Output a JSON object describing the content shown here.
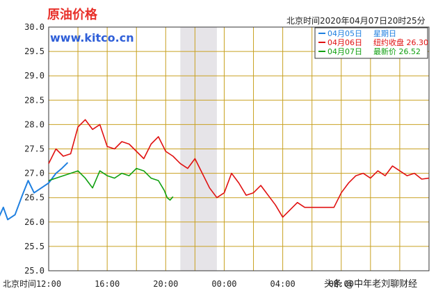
{
  "chart_data": {
    "type": "line",
    "title": "原油价格",
    "site": "www.kitco.cn",
    "timestamp": "北京时间2020年04月07日20时25分",
    "xlabel": "北京时间",
    "x_ticks": [
      "12:00",
      "16:00",
      "20:00",
      "00:00",
      "04:00",
      "08:00"
    ],
    "ylim": [
      25.0,
      30.0
    ],
    "y_ticks": [
      "30.0",
      "29.5",
      "29.0",
      "28.5",
      "28.0",
      "27.5",
      "27.0",
      "26.5",
      "26.0",
      "25.5",
      "25.0"
    ],
    "grid": true,
    "shaded_range_hours": [
      21,
      23.5
    ],
    "legend": {
      "position": "top-right",
      "rows": [
        {
          "date": "04月05日",
          "label": "星期日",
          "value": ""
        },
        {
          "date": "04月06日",
          "label": "纽约收盘",
          "value": "26.30"
        },
        {
          "date": "04月07日",
          "label": "最新价",
          "value": "26.52"
        }
      ]
    },
    "colors": {
      "series_0405": "#1e7fe0",
      "series_0406": "#e01010",
      "series_0407": "#10a010",
      "grid": "#c8a020",
      "shade": "#e6e4e8"
    },
    "series": [
      {
        "name": "04月05日",
        "color": "#1e7fe0",
        "x": [
          6.0,
          7.2,
          7.2,
          7.3,
          7.35,
          7.5,
          7.8,
          8.2,
          8.6,
          8.9,
          9.2,
          9.7,
          10.2,
          10.6,
          11.0,
          11.5,
          12.0,
          12.5,
          12.9,
          13.3
        ],
        "y": [
          29.02,
          29.02,
          28.5,
          26.8,
          25.85,
          26.05,
          26.3,
          26.25,
          26.1,
          26.3,
          26.05,
          26.15,
          26.55,
          26.85,
          26.6,
          26.7,
          26.8,
          27.0,
          27.1,
          27.22
        ]
      },
      {
        "name": "04月06日",
        "color": "#e01010",
        "x": [
          12.0,
          12.5,
          13.0,
          13.5,
          14.0,
          14.5,
          15.0,
          15.5,
          16.0,
          16.5,
          17.0,
          17.5,
          18.0,
          18.5,
          19.0,
          19.5,
          20.0,
          20.5,
          21.0,
          21.5,
          22.0,
          22.5,
          23.0,
          23.5,
          24.0,
          24.5,
          25.0,
          25.5,
          26.0,
          26.5,
          27.0,
          27.5,
          28.0,
          28.5,
          29.0,
          29.5,
          30.0,
          30.5,
          31.0,
          31.5,
          32.0,
          32.5,
          33.0,
          33.5,
          34.0,
          34.5,
          35.0,
          35.5,
          36.0,
          36.5,
          37.0,
          37.5,
          38.0
        ],
        "y": [
          27.2,
          27.5,
          27.35,
          27.4,
          27.95,
          28.1,
          27.9,
          28.0,
          27.55,
          27.5,
          27.65,
          27.6,
          27.45,
          27.3,
          27.6,
          27.75,
          27.45,
          27.35,
          27.2,
          27.1,
          27.3,
          27.0,
          26.7,
          26.5,
          26.6,
          27.0,
          26.8,
          26.55,
          26.6,
          26.75,
          26.55,
          26.35,
          26.1,
          26.25,
          26.4,
          26.3,
          26.3,
          26.3,
          26.3,
          26.3,
          26.6,
          26.8,
          26.95,
          27.0,
          26.9,
          27.05,
          26.95,
          27.15,
          27.05,
          26.95,
          27.0,
          26.88,
          26.9
        ]
      },
      {
        "name": "04月07日",
        "color": "#10a010",
        "x": [
          12.0,
          12.5,
          13.0,
          13.5,
          14.0,
          14.5,
          15.0,
          15.5,
          16.0,
          16.5,
          17.0,
          17.5,
          18.0,
          18.5,
          19.0,
          19.5,
          19.9,
          20.1,
          20.3,
          20.5
        ],
        "y": [
          26.85,
          26.9,
          26.95,
          27.0,
          27.05,
          26.9,
          26.7,
          27.05,
          26.95,
          26.9,
          27.0,
          26.95,
          27.1,
          27.05,
          26.9,
          26.85,
          26.65,
          26.5,
          26.45,
          26.52
        ]
      }
    ]
  },
  "watermark": "头条 @中年老刘聊财经"
}
